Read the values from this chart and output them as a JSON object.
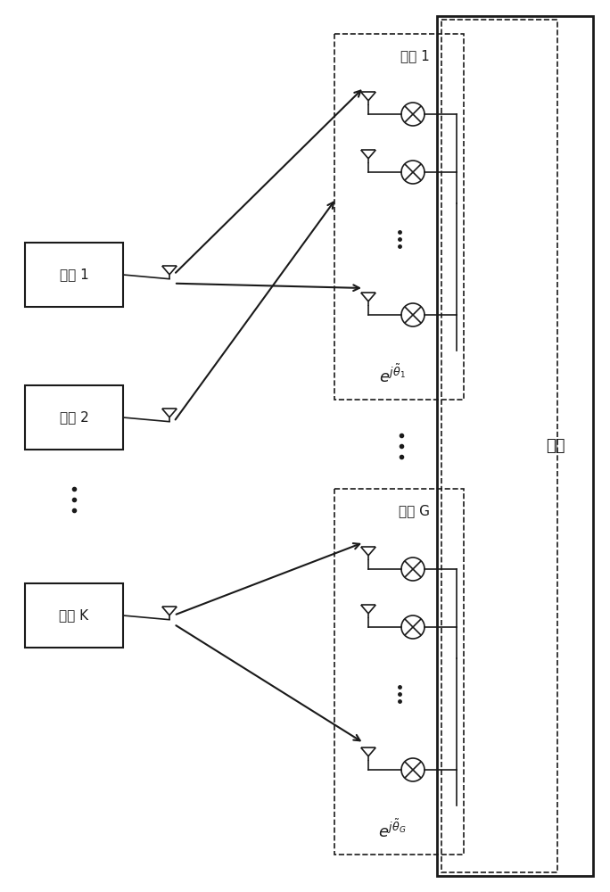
{
  "fig_width": 6.84,
  "fig_height": 10.0,
  "bg_color": "#ffffff",
  "user1_label": "用户 1",
  "user2_label": "用户 2",
  "userK_label": "用户 K",
  "group1_label": "分组 1",
  "groupG_label": "分组 G",
  "base_station_label": "基站",
  "lw": 1.2,
  "arrow_lw": 1.5,
  "dark": "#1a1a1a"
}
